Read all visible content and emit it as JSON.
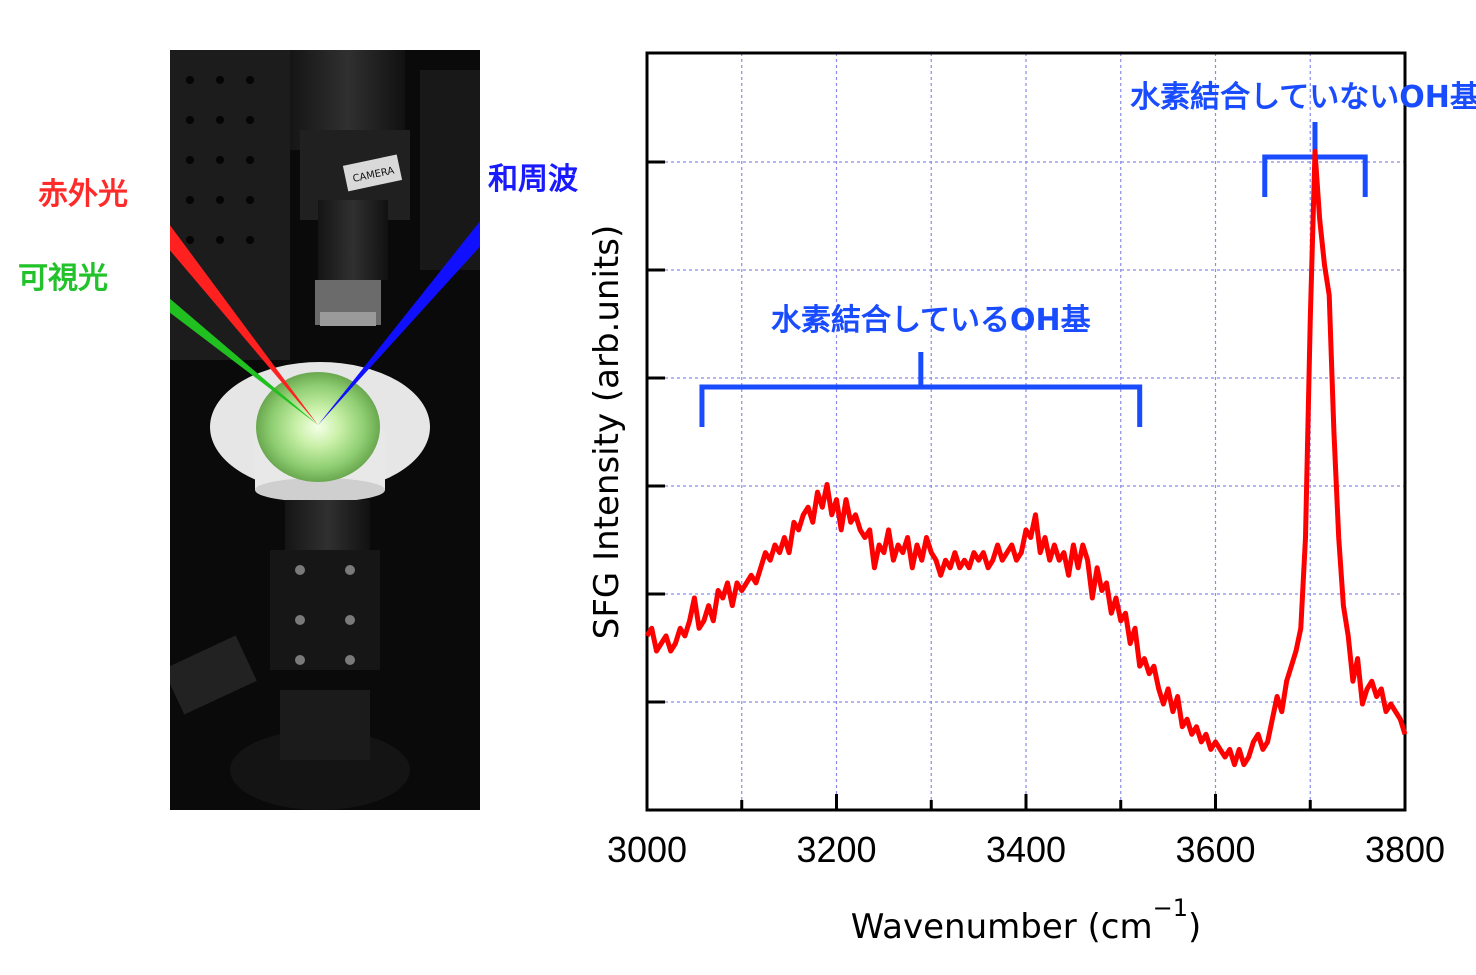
{
  "photo": {
    "camera_text": "CAMERA",
    "beams": {
      "infrared": {
        "label": "赤外光",
        "color": "#ff2020"
      },
      "visible": {
        "label": "可視光",
        "color": "#20c020"
      },
      "sum_frequency": {
        "label": "和周波",
        "color": "#1010ff"
      }
    }
  },
  "chart_data": {
    "type": "line",
    "xlabel": "Wavenumber (cm",
    "xlabel_exponent": "−1",
    "xlabel_close": ")",
    "ylabel": "SFG Intensity (arb.units)",
    "xlim": [
      3000,
      3800
    ],
    "ylim": [
      0,
      1
    ],
    "x_ticks": [
      3000,
      3200,
      3400,
      3600,
      3800
    ],
    "x_minor_ticks": [
      3100,
      3300,
      3500,
      3700
    ],
    "y_ticks_count": 6,
    "grid": true,
    "line_color": "#ff0000",
    "annotations": [
      {
        "text": "水素結合しているOH基",
        "x_start": 3058,
        "x_end": 3520
      },
      {
        "text": "水素結合していないOH基",
        "x_start": 3652,
        "x_end": 3758
      }
    ],
    "series": [
      {
        "x": [
          3000,
          3005,
          3010,
          3015,
          3020,
          3025,
          3030,
          3035,
          3040,
          3045,
          3050,
          3055,
          3060,
          3065,
          3070,
          3075,
          3080,
          3085,
          3090,
          3095,
          3100,
          3105,
          3110,
          3115,
          3120,
          3125,
          3130,
          3135,
          3140,
          3145,
          3150,
          3155,
          3160,
          3165,
          3170,
          3175,
          3180,
          3185,
          3190,
          3195,
          3200,
          3205,
          3210,
          3215,
          3220,
          3225,
          3230,
          3235,
          3240,
          3245,
          3250,
          3255,
          3260,
          3265,
          3270,
          3275,
          3280,
          3285,
          3290,
          3295,
          3300,
          3305,
          3310,
          3315,
          3320,
          3325,
          3330,
          3335,
          3340,
          3345,
          3350,
          3355,
          3360,
          3365,
          3370,
          3375,
          3380,
          3385,
          3390,
          3395,
          3400,
          3405,
          3410,
          3415,
          3420,
          3425,
          3430,
          3435,
          3440,
          3445,
          3450,
          3455,
          3460,
          3465,
          3470,
          3475,
          3480,
          3485,
          3490,
          3495,
          3500,
          3505,
          3510,
          3515,
          3520,
          3525,
          3530,
          3535,
          3540,
          3545,
          3550,
          3555,
          3560,
          3565,
          3570,
          3575,
          3580,
          3585,
          3590,
          3595,
          3600,
          3605,
          3610,
          3615,
          3620,
          3625,
          3630,
          3635,
          3640,
          3645,
          3650,
          3655,
          3660,
          3665,
          3670,
          3675,
          3680,
          3685,
          3690,
          3695,
          3700,
          3705,
          3710,
          3715,
          3720,
          3725,
          3730,
          3735,
          3740,
          3745,
          3750,
          3755,
          3760,
          3765,
          3770,
          3775,
          3780,
          3785,
          3790,
          3795,
          3800
        ],
        "y": [
          0.23,
          0.24,
          0.21,
          0.22,
          0.23,
          0.21,
          0.22,
          0.24,
          0.23,
          0.25,
          0.28,
          0.24,
          0.25,
          0.27,
          0.25,
          0.29,
          0.28,
          0.3,
          0.27,
          0.3,
          0.29,
          0.3,
          0.31,
          0.3,
          0.32,
          0.34,
          0.33,
          0.35,
          0.34,
          0.36,
          0.34,
          0.38,
          0.37,
          0.39,
          0.4,
          0.38,
          0.42,
          0.4,
          0.43,
          0.39,
          0.41,
          0.37,
          0.41,
          0.38,
          0.39,
          0.37,
          0.36,
          0.37,
          0.32,
          0.35,
          0.34,
          0.37,
          0.33,
          0.35,
          0.34,
          0.36,
          0.32,
          0.35,
          0.33,
          0.36,
          0.34,
          0.33,
          0.31,
          0.33,
          0.32,
          0.34,
          0.32,
          0.33,
          0.32,
          0.34,
          0.33,
          0.34,
          0.32,
          0.33,
          0.35,
          0.33,
          0.34,
          0.35,
          0.33,
          0.34,
          0.37,
          0.36,
          0.39,
          0.34,
          0.36,
          0.33,
          0.35,
          0.33,
          0.34,
          0.31,
          0.35,
          0.32,
          0.35,
          0.33,
          0.28,
          0.32,
          0.29,
          0.3,
          0.26,
          0.28,
          0.25,
          0.26,
          0.22,
          0.24,
          0.19,
          0.2,
          0.18,
          0.19,
          0.16,
          0.14,
          0.16,
          0.13,
          0.15,
          0.11,
          0.12,
          0.1,
          0.11,
          0.09,
          0.1,
          0.08,
          0.09,
          0.08,
          0.07,
          0.08,
          0.06,
          0.08,
          0.06,
          0.07,
          0.09,
          0.1,
          0.08,
          0.09,
          0.12,
          0.15,
          0.13,
          0.17,
          0.19,
          0.21,
          0.24,
          0.36,
          0.65,
          0.87,
          0.78,
          0.72,
          0.68,
          0.5,
          0.36,
          0.27,
          0.23,
          0.17,
          0.2,
          0.14,
          0.16,
          0.17,
          0.15,
          0.16,
          0.13,
          0.14,
          0.13,
          0.12,
          0.1
        ]
      }
    ]
  }
}
